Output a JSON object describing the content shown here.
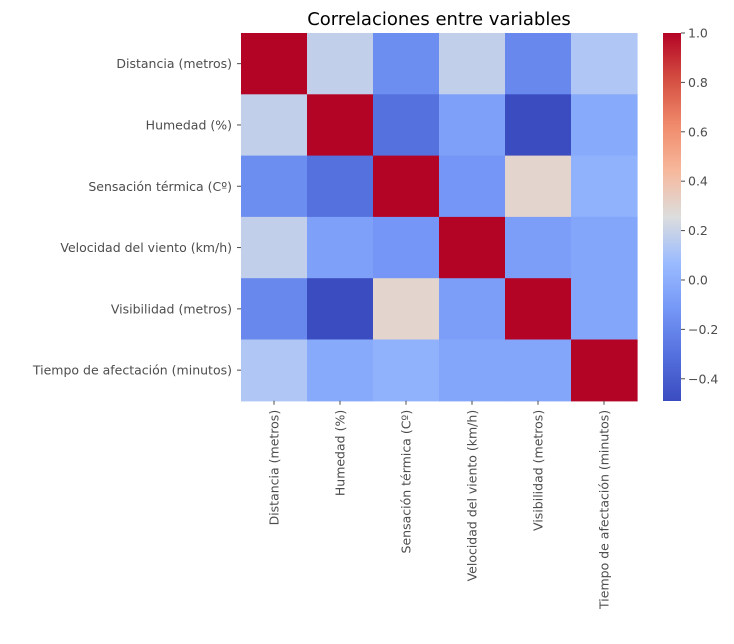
{
  "chart_data": {
    "type": "heatmap",
    "title": "Correlaciones entre variables",
    "xlabel": "",
    "ylabel": "",
    "rows": [
      "Distancia (metros)",
      "Humedad (%)",
      "Sensación térmica (Cº)",
      "Velocidad del viento (km/h)",
      "Visibilidad (metros)",
      "Tiempo de afectación (minutos)"
    ],
    "columns": [
      "Distancia (metros)",
      "Humedad (%)",
      "Sensación térmica (Cº)",
      "Velocidad del viento (km/h)",
      "Visibilidad (metros)",
      "Tiempo de afectación (minutos)"
    ],
    "values": [
      [
        1.0,
        0.18,
        -0.16,
        0.18,
        -0.19,
        0.13
      ],
      [
        0.18,
        1.0,
        -0.3,
        -0.07,
        -0.49,
        -0.02
      ],
      [
        -0.16,
        -0.3,
        1.0,
        -0.12,
        0.3,
        0.02
      ],
      [
        0.18,
        -0.07,
        -0.12,
        1.0,
        -0.08,
        -0.04
      ],
      [
        -0.19,
        -0.49,
        0.3,
        -0.08,
        1.0,
        -0.04
      ],
      [
        0.13,
        -0.02,
        0.02,
        -0.04,
        -0.04,
        1.0
      ]
    ],
    "colormap": "coolwarm",
    "vmin": -0.49,
    "vmax": 1.0,
    "colorbar_ticks": [
      {
        "value": 1.0,
        "label": "1.0"
      },
      {
        "value": 0.8,
        "label": "0.8"
      },
      {
        "value": 0.6,
        "label": "0.6"
      },
      {
        "value": 0.4,
        "label": "0.4"
      },
      {
        "value": 0.2,
        "label": "0.2"
      },
      {
        "value": 0.0,
        "label": "0.0"
      },
      {
        "value": -0.2,
        "label": "−0.2"
      },
      {
        "value": -0.4,
        "label": "−0.4"
      }
    ],
    "grid": false,
    "legend": "colorbar-right"
  }
}
